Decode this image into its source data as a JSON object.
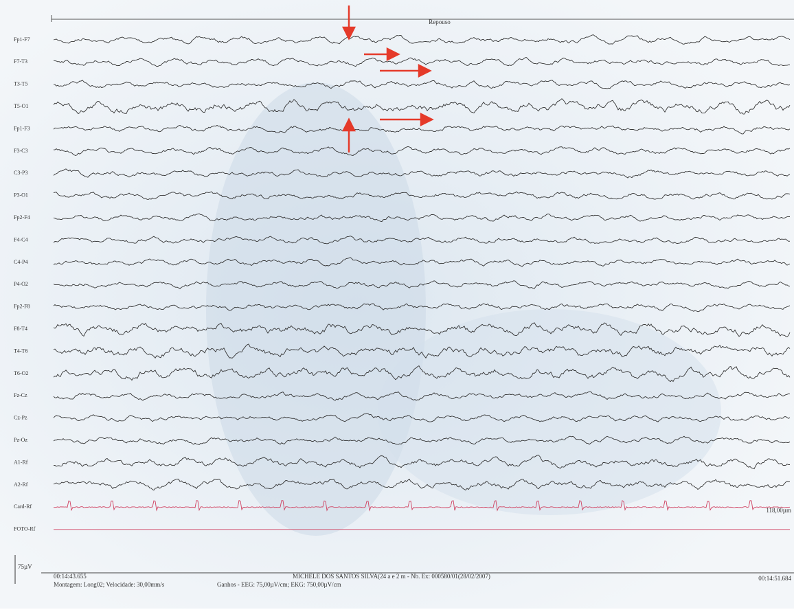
{
  "header": {
    "title": "Repouso"
  },
  "channels": [
    "Fp1-F7",
    "F7-T3",
    "T3-T5",
    "T5-O1",
    "Fp1-F3",
    "F3-C3",
    "C3-P3",
    "P3-O1",
    "Fp2-F4",
    "F4-C4",
    "C4-P4",
    "P4-O2",
    "Fp2-F8",
    "F8-T4",
    "T4-T6",
    "T6-O2",
    "Fz-Cz",
    "Cz-Pz",
    "Pz-Oz",
    "A1-Rf",
    "A2-Rf",
    "Card-Rf",
    "FOTO-Rf"
  ],
  "right_label": "118,00µm",
  "scale": "75µV",
  "footer": {
    "start_time": "00:14:43.655",
    "end_time": "00:14:51.684",
    "patient": "MICHELE DOS SANTOS SILVA(24 a e 2 m - Nb. Ex: 000580/01(28/02/2007)",
    "montage": "Montagem: Long02; Velocidade: 30,00mm/s",
    "gains": "Ganhos - EEG: 75,00µV/cm; EKG: 750,00µV/cm"
  }
}
